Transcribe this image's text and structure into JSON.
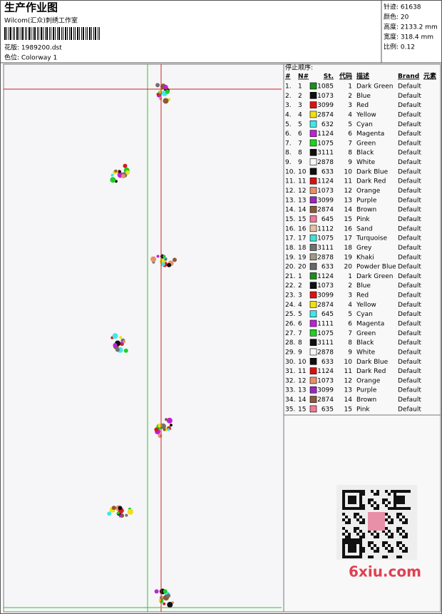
{
  "header": {
    "title": "生产作业图",
    "studio": "Wilcom(汇众)刺绣工作室",
    "pattern": "花版: 1989200.dst",
    "colorway": "色位: Colorway 1"
  },
  "stats": [
    "针迹: 61638",
    "颜色: 20",
    "高度: 2133.2 mm",
    "宽度: 318.4 mm",
    "比例: 0.12"
  ],
  "table": {
    "caption": "停止顺序:",
    "columns": [
      "#",
      "N#",
      "St.",
      "代码",
      "描述",
      "Brand",
      "元素"
    ],
    "rows": [
      {
        "index": "1.",
        "n": 1,
        "color": "#1e8c1e",
        "stitches": 1085,
        "code": 1,
        "description": "Dark Green",
        "brand": "Default"
      },
      {
        "index": "2.",
        "n": 2,
        "color": "#101010",
        "stitches": 1073,
        "code": 2,
        "description": "Blue",
        "brand": "Default"
      },
      {
        "index": "3.",
        "n": 3,
        "color": "#e01010",
        "stitches": 3099,
        "code": 3,
        "description": "Red",
        "brand": "Default"
      },
      {
        "index": "4.",
        "n": 4,
        "color": "#f0e010",
        "stitches": 2874,
        "code": 4,
        "description": "Yellow",
        "brand": "Default"
      },
      {
        "index": "5.",
        "n": 5,
        "color": "#40e8e8",
        "stitches": 632,
        "code": 5,
        "description": "Cyan",
        "brand": "Default"
      },
      {
        "index": "6.",
        "n": 6,
        "color": "#c020d8",
        "stitches": 1124,
        "code": 6,
        "description": "Magenta",
        "brand": "Default"
      },
      {
        "index": "7.",
        "n": 7,
        "color": "#20d020",
        "stitches": 1075,
        "code": 7,
        "description": "Green",
        "brand": "Default"
      },
      {
        "index": "8.",
        "n": 8,
        "color": "#101010",
        "stitches": 3111,
        "code": 8,
        "description": "Black",
        "brand": "Default"
      },
      {
        "index": "9.",
        "n": 9,
        "color": "#f8f8f8",
        "stitches": 2878,
        "code": 9,
        "description": "White",
        "brand": "Default"
      },
      {
        "index": "10.",
        "n": 10,
        "color": "#101010",
        "stitches": 633,
        "code": 10,
        "description": "Dark Blue",
        "brand": "Default"
      },
      {
        "index": "11.",
        "n": 11,
        "color": "#d81010",
        "stitches": 1124,
        "code": 11,
        "description": "Dark Red",
        "brand": "Default"
      },
      {
        "index": "12.",
        "n": 12,
        "color": "#e8906a",
        "stitches": 1073,
        "code": 12,
        "description": "Orange",
        "brand": "Default"
      },
      {
        "index": "13.",
        "n": 13,
        "color": "#9a28c0",
        "stitches": 3099,
        "code": 13,
        "description": "Purple",
        "brand": "Default"
      },
      {
        "index": "14.",
        "n": 14,
        "color": "#8a5a3a",
        "stitches": 2874,
        "code": 14,
        "description": "Brown",
        "brand": "Default"
      },
      {
        "index": "15.",
        "n": 15,
        "color": "#f07898",
        "stitches": 645,
        "code": 15,
        "description": "Pink",
        "brand": "Default"
      },
      {
        "index": "16.",
        "n": 16,
        "color": "#e8c0a0",
        "stitches": 1112,
        "code": 16,
        "description": "Sand",
        "brand": "Default"
      },
      {
        "index": "17.",
        "n": 17,
        "color": "#40e0d8",
        "stitches": 1075,
        "code": 17,
        "description": "Turquoise",
        "brand": "Default"
      },
      {
        "index": "18.",
        "n": 18,
        "color": "#707070",
        "stitches": 3111,
        "code": 18,
        "description": "Grey",
        "brand": "Default"
      },
      {
        "index": "19.",
        "n": 19,
        "color": "#a09888",
        "stitches": 2878,
        "code": 19,
        "description": "Khaki",
        "brand": "Default"
      },
      {
        "index": "20.",
        "n": 20,
        "color": "#686868",
        "stitches": 633,
        "code": 20,
        "description": "Powder Blue",
        "brand": "Default"
      },
      {
        "index": "21.",
        "n": 1,
        "color": "#1e8c1e",
        "stitches": 1124,
        "code": 1,
        "description": "Dark Green",
        "brand": "Default"
      },
      {
        "index": "22.",
        "n": 2,
        "color": "#101010",
        "stitches": 1073,
        "code": 2,
        "description": "Blue",
        "brand": "Default"
      },
      {
        "index": "23.",
        "n": 3,
        "color": "#e01010",
        "stitches": 3099,
        "code": 3,
        "description": "Red",
        "brand": "Default"
      },
      {
        "index": "24.",
        "n": 4,
        "color": "#f0e010",
        "stitches": 2874,
        "code": 4,
        "description": "Yellow",
        "brand": "Default"
      },
      {
        "index": "25.",
        "n": 5,
        "color": "#40e8e8",
        "stitches": 645,
        "code": 5,
        "description": "Cyan",
        "brand": "Default"
      },
      {
        "index": "26.",
        "n": 6,
        "color": "#c020d8",
        "stitches": 1111,
        "code": 6,
        "description": "Magenta",
        "brand": "Default"
      },
      {
        "index": "27.",
        "n": 7,
        "color": "#20d020",
        "stitches": 1075,
        "code": 7,
        "description": "Green",
        "brand": "Default"
      },
      {
        "index": "28.",
        "n": 8,
        "color": "#101010",
        "stitches": 3111,
        "code": 8,
        "description": "Black",
        "brand": "Default"
      },
      {
        "index": "29.",
        "n": 9,
        "color": "#f8f8f8",
        "stitches": 2878,
        "code": 9,
        "description": "White",
        "brand": "Default"
      },
      {
        "index": "30.",
        "n": 10,
        "color": "#101010",
        "stitches": 633,
        "code": 10,
        "description": "Dark Blue",
        "brand": "Default"
      },
      {
        "index": "31.",
        "n": 11,
        "color": "#d81010",
        "stitches": 1124,
        "code": 11,
        "description": "Dark Red",
        "brand": "Default"
      },
      {
        "index": "32.",
        "n": 12,
        "color": "#e8906a",
        "stitches": 1073,
        "code": 12,
        "description": "Orange",
        "brand": "Default"
      },
      {
        "index": "33.",
        "n": 13,
        "color": "#9a28c0",
        "stitches": 3099,
        "code": 13,
        "description": "Purple",
        "brand": "Default"
      },
      {
        "index": "34.",
        "n": 14,
        "color": "#8a5a3a",
        "stitches": 2874,
        "code": 14,
        "description": "Brown",
        "brand": "Default"
      },
      {
        "index": "35.",
        "n": 15,
        "color": "#f07898",
        "stitches": 635,
        "code": 15,
        "description": "Pink",
        "brand": "Default"
      }
    ]
  },
  "watermark": "6xiu.com"
}
